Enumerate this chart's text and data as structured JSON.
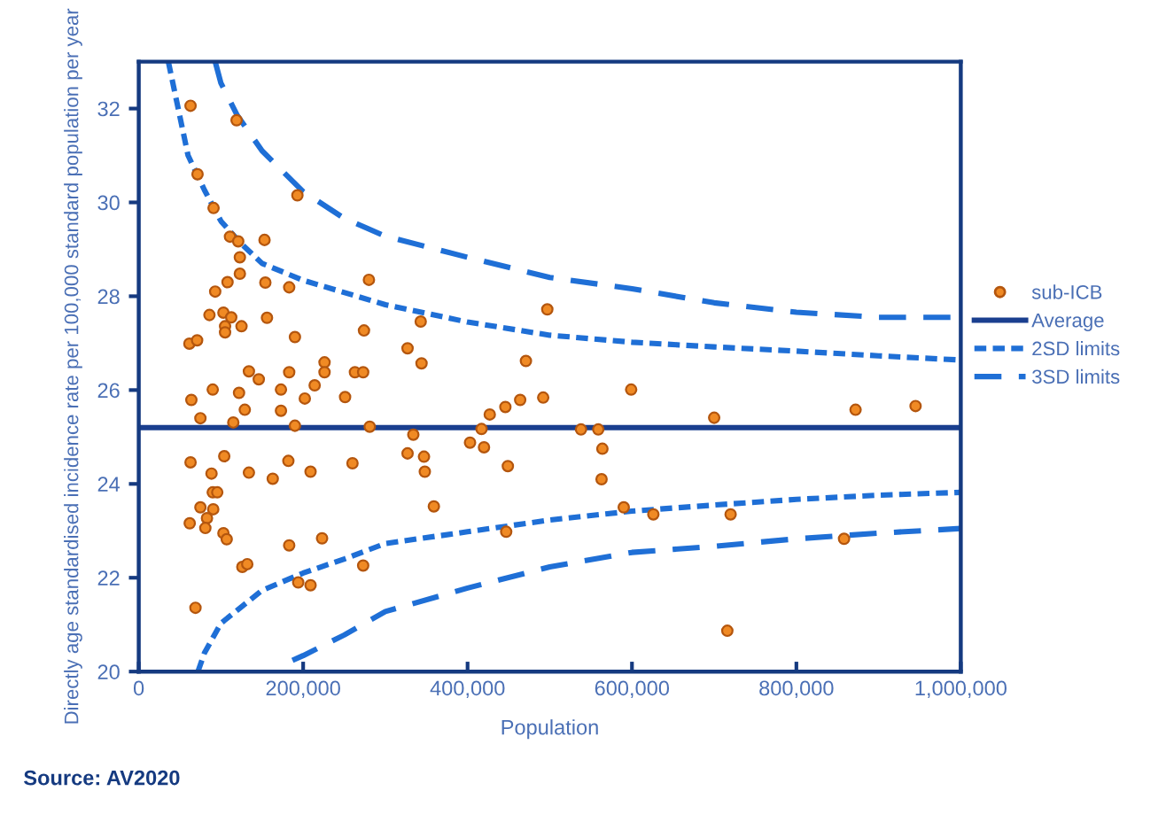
{
  "chart_data": {
    "type": "scatter",
    "xlabel": "Population",
    "ylabel": "Directly age standardised incidence rate per 100,000 standard population per year",
    "annotations": [
      "Source: AV2020"
    ],
    "xlim": [
      0,
      1000000
    ],
    "ylim": [
      20,
      33
    ],
    "xticks": [
      {
        "value": 0,
        "label": "0"
      },
      {
        "value": 200000,
        "label": "200,000"
      },
      {
        "value": 400000,
        "label": "400,000"
      },
      {
        "value": 600000,
        "label": "600,000"
      },
      {
        "value": 800000,
        "label": "800,000"
      },
      {
        "value": 1000000,
        "label": "1,000,000"
      }
    ],
    "yticks": [
      20,
      22,
      24,
      26,
      28,
      30,
      32
    ],
    "grid": false,
    "legend": "right",
    "series": [
      {
        "name": "sub-ICB",
        "color": "#f08a24",
        "marker": "circle",
        "x": [
          63000,
          119000,
          71500,
          91000,
          193000,
          111000,
          121000,
          153000,
          123000,
          123000,
          108000,
          154000,
          183000,
          280000,
          93000,
          86000,
          103000,
          112500,
          105000,
          105000,
          125000,
          156000,
          274000,
          190000,
          61600,
          71000,
          226000,
          134000,
          146000,
          183000,
          226000,
          263000,
          273000,
          64000,
          90000,
          122000,
          75000,
          129000,
          173000,
          173000,
          214000,
          202000,
          115000,
          251000,
          190000,
          281000,
          63000,
          104000,
          88500,
          134000,
          182000,
          163000,
          209000,
          260000,
          90000,
          95500,
          75000,
          90600,
          83000,
          62000,
          81000,
          103000,
          107000,
          183000,
          223000,
          126000,
          132000,
          273000,
          194000,
          209000,
          69000,
          497000,
          343000,
          327000,
          344000,
          471000,
          599000,
          427000,
          446000,
          464000,
          492000,
          700000,
          334000,
          417000,
          538000,
          559000,
          403000,
          420000,
          327000,
          347000,
          564000,
          449000,
          348000,
          563000,
          359000,
          590000,
          626000,
          720000,
          447000,
          716000,
          872000,
          945000,
          858000
        ],
        "values": [
          32.06,
          31.75,
          30.6,
          29.88,
          30.15,
          29.27,
          29.17,
          29.2,
          28.83,
          28.48,
          28.3,
          28.29,
          28.19,
          28.35,
          28.1,
          27.6,
          27.65,
          27.55,
          27.36,
          27.23,
          27.36,
          27.54,
          27.27,
          27.13,
          26.99,
          27.06,
          26.59,
          26.4,
          26.23,
          26.38,
          26.38,
          26.38,
          26.38,
          25.79,
          26.01,
          25.94,
          25.4,
          25.58,
          26.01,
          25.56,
          26.1,
          25.82,
          25.31,
          25.85,
          25.24,
          25.22,
          24.46,
          24.59,
          24.22,
          24.24,
          24.49,
          24.11,
          24.26,
          24.44,
          23.82,
          23.82,
          23.5,
          23.46,
          23.27,
          23.16,
          23.06,
          22.95,
          22.82,
          22.69,
          22.84,
          22.23,
          22.29,
          22.26,
          21.9,
          21.84,
          21.36,
          27.72,
          27.46,
          26.89,
          26.57,
          26.62,
          26.01,
          25.48,
          25.64,
          25.79,
          25.84,
          25.41,
          25.05,
          25.17,
          25.16,
          25.16,
          24.88,
          24.78,
          24.65,
          24.58,
          24.75,
          24.38,
          24.26,
          24.1,
          23.52,
          23.5,
          23.35,
          23.35,
          22.98,
          20.87,
          25.58,
          25.66,
          22.83
        ]
      },
      {
        "name": "Average",
        "type": "line",
        "color": "#1a3f8f",
        "line_style": "solid",
        "x": [
          0,
          1000000
        ],
        "values": [
          25.2,
          25.2
        ]
      },
      {
        "name": "2SD limits",
        "type": "line",
        "color": "#1f6fd6",
        "line_style": "dotted",
        "x": [
          36000,
          60000,
          80000,
          100000,
          124000,
          150000,
          200000,
          300000,
          400000,
          500000,
          600000,
          700000,
          800000,
          900000,
          1000000
        ],
        "values": [
          33,
          31.0,
          30.26,
          29.6,
          29.13,
          28.7,
          28.34,
          27.82,
          27.45,
          27.17,
          27.02,
          26.92,
          26.83,
          26.73,
          26.64
        ]
      },
      {
        "type": "line",
        "color": "#1f6fd6",
        "line_style": "dotted",
        "x": [
          72000,
          80000,
          100000,
          150000,
          200000,
          250000,
          300000,
          400000,
          500000,
          600000,
          700000,
          800000,
          900000,
          1000000
        ],
        "values": [
          20.0,
          20.4,
          21.03,
          21.73,
          22.1,
          22.4,
          22.73,
          22.98,
          23.23,
          23.42,
          23.55,
          23.67,
          23.76,
          23.82
        ]
      },
      {
        "name": "3SD limits",
        "type": "line",
        "color": "#1f6fd6",
        "line_style": "dashed",
        "x": [
          93000,
          100000,
          120000,
          150000,
          200000,
          250000,
          300000,
          400000,
          500000,
          600000,
          700000,
          800000,
          900000,
          1000000
        ],
        "values": [
          33,
          32.54,
          31.85,
          31.1,
          30.23,
          29.66,
          29.28,
          28.83,
          28.4,
          28.16,
          27.86,
          27.66,
          27.55,
          27.55
        ]
      },
      {
        "type": "line",
        "color": "#1f6fd6",
        "line_style": "dashed",
        "x": [
          187000,
          200000,
          250000,
          300000,
          400000,
          500000,
          600000,
          700000,
          800000,
          900000,
          1000000
        ],
        "values": [
          20.24,
          20.34,
          20.78,
          21.28,
          21.78,
          22.23,
          22.54,
          22.67,
          22.83,
          22.95,
          23.05
        ]
      }
    ]
  }
}
